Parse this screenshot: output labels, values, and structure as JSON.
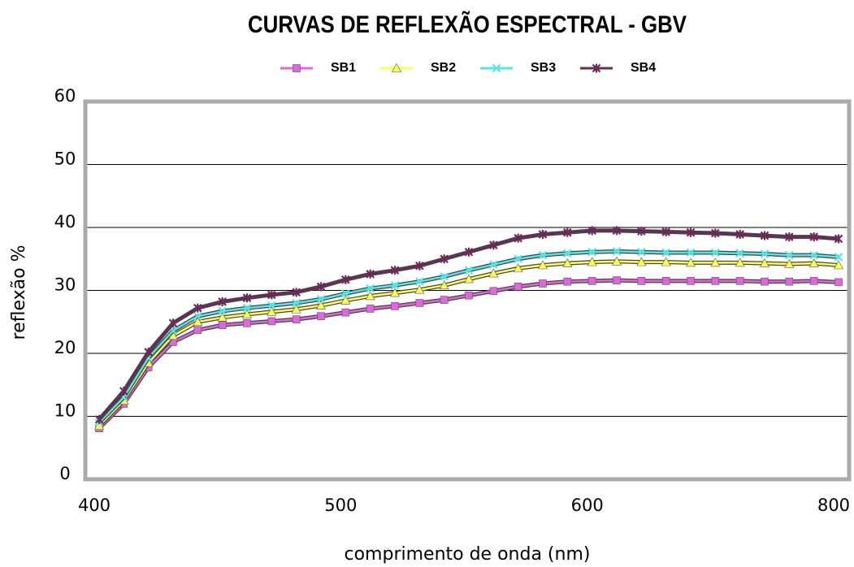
{
  "chart_data": {
    "type": "line",
    "title": "CURVAS DE REFLEXÃO ESPECTRAL - GBV",
    "x_label": "comprimento de onda (nm)",
    "y_label": "reflexão %",
    "categories": [
      "400",
      null,
      null,
      null,
      null,
      null,
      null,
      null,
      null,
      null,
      "500",
      null,
      null,
      null,
      null,
      null,
      null,
      null,
      null,
      null,
      "600",
      null,
      null,
      null,
      null,
      null,
      null,
      null,
      null,
      null,
      "800"
    ],
    "ylim": [
      0,
      60
    ],
    "yticks": [
      0,
      10,
      20,
      30,
      40,
      50,
      60
    ],
    "grid": true,
    "series": [
      {
        "name": "SB1",
        "color": "#e066e0",
        "marker": "square",
        "values": [
          8.1,
          12,
          17.8,
          21.8,
          23.7,
          24.5,
          24.8,
          25.1,
          25.4,
          25.9,
          26.5,
          27.1,
          27.5,
          28,
          28.5,
          29.2,
          29.9,
          30.6,
          31.1,
          31.4,
          31.5,
          31.6,
          31.5,
          31.5,
          31.5,
          31.5,
          31.5,
          31.4,
          31.4,
          31.5,
          31.3
        ]
      },
      {
        "name": "SB2",
        "color": "#ffff55",
        "marker": "triangle",
        "values": [
          8.5,
          12.5,
          18.5,
          22.8,
          25,
          25.7,
          26.2,
          26.6,
          27,
          27.6,
          28.4,
          29.1,
          29.6,
          30.1,
          30.8,
          31.8,
          32.7,
          33.5,
          34,
          34.3,
          34.5,
          34.6,
          34.5,
          34.5,
          34.4,
          34.4,
          34.4,
          34.3,
          34.2,
          34.3,
          34
        ]
      },
      {
        "name": "SB3",
        "color": "#55e6e6",
        "marker": "x",
        "values": [
          9,
          13,
          19.3,
          23.6,
          25.9,
          26.7,
          27.2,
          27.6,
          28,
          28.6,
          29.5,
          30.3,
          30.8,
          31.4,
          32.2,
          33.2,
          34.1,
          35,
          35.6,
          35.9,
          36.1,
          36.2,
          36.1,
          36,
          36,
          36,
          35.9,
          35.8,
          35.6,
          35.6,
          35.3
        ]
      },
      {
        "name": "SB4",
        "color": "#6b2a5a",
        "marker": "star",
        "values": [
          9.5,
          14,
          20.2,
          24.8,
          27.2,
          28.2,
          28.8,
          29.3,
          29.7,
          30.6,
          31.7,
          32.6,
          33.2,
          33.9,
          35,
          36.1,
          37.2,
          38.3,
          38.9,
          39.2,
          39.5,
          39.5,
          39.4,
          39.3,
          39.2,
          39.1,
          38.9,
          38.7,
          38.5,
          38.5,
          38.2
        ]
      }
    ]
  }
}
